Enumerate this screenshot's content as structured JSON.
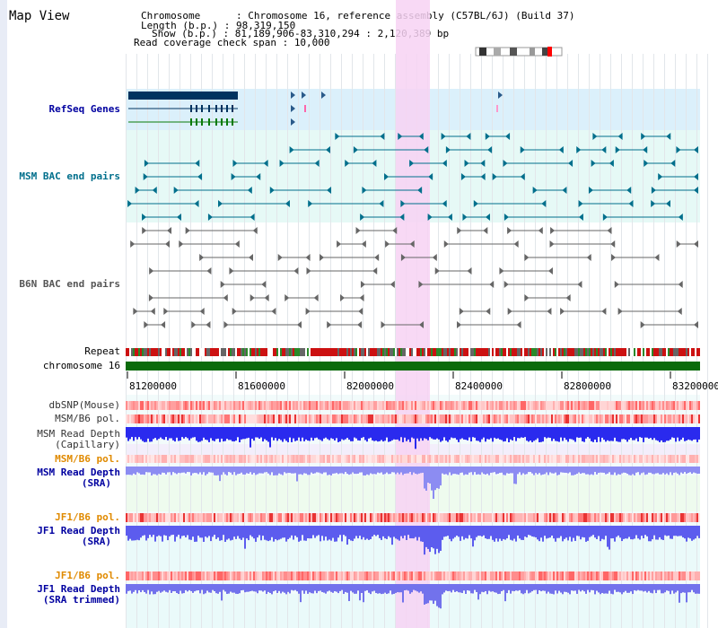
{
  "title": "Map View",
  "info": {
    "chromosome_key": "Chromosome      : ",
    "chromosome": "Chromosome 16, reference assembly (C57BL/6J) (Build 37)",
    "length_key": "Length (b.p.) : ",
    "length": "98,319,150",
    "show_key": "Show (b.p.) : ",
    "show": "81,189,906-83,310,294 : 2,120,389 bp",
    "coverage_key": "Read coverage check span : ",
    "coverage": "10,000"
  },
  "tracks": {
    "refseq": "RefSeq Genes",
    "msm_bac": "MSM BAC end pairs",
    "b6n_bac": "B6N BAC end pairs",
    "repeat": "Repeat",
    "chromosome": "chromosome 16",
    "dbsnp": "dbSNP(Mouse)",
    "msm_b6_pol": "MSM/B6 pol.",
    "msm_rd_cap_1": "MSM Read Depth",
    "msm_rd_cap_2": "(Capillary)",
    "msm_b6_pol2": "MSM/B6 pol.",
    "msm_rd_sra_1": "MSM Read Depth",
    "msm_rd_sra_2": "(SRA)",
    "jf1_b6_pol": "JF1/B6 pol.",
    "jf1_rd_sra_1": "JF1 Read Depth",
    "jf1_rd_sra_2": "(SRA)",
    "jf1_b6_pol2": "JF1/B6 pol.",
    "jf1_rd_trim_1": "JF1 Read Depth",
    "jf1_rd_trim_2": "(SRA trimmed)"
  },
  "axis": {
    "ticks": [
      "81200000",
      "81600000",
      "82000000",
      "82400000",
      "82800000",
      "83200000"
    ]
  },
  "colors": {
    "highlight": "#f7d2f3",
    "refseq_bg": "#dbf0fb",
    "msm_bg": "#e6f9f6",
    "chrom": "#0b6b0b",
    "dark_blue": "#00335f",
    "teal": "#006f8c",
    "gray": "#666666",
    "orange": "#e08a00",
    "navy": "#0000a0"
  }
}
